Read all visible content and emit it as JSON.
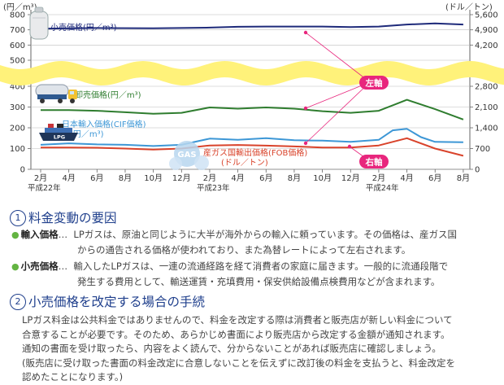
{
  "chart_data": {
    "type": "line",
    "yunit_left": "(円／m³)",
    "yunit_right": "(ドル／トン)",
    "left_ticks": [
      "0",
      "100",
      "200",
      "300",
      "400",
      "500",
      "600",
      "700",
      "800"
    ],
    "right_ticks": [
      "0",
      "700",
      "1,400",
      "2,100",
      "2,800",
      "4,200",
      "4,900",
      "5,600"
    ],
    "x_ticks": [
      {
        "label": "2月",
        "era": "平成22年"
      },
      {
        "label": "4月"
      },
      {
        "label": "6月"
      },
      {
        "label": "8月"
      },
      {
        "label": "10月"
      },
      {
        "label": "12月"
      },
      {
        "label": "2月",
        "era": "平成23年"
      },
      {
        "label": "4月"
      },
      {
        "label": "6月"
      },
      {
        "label": "8月"
      },
      {
        "label": "10月"
      },
      {
        "label": "12月"
      },
      {
        "label": "2月",
        "era": "平成24年"
      },
      {
        "label": "4月"
      },
      {
        "label": "6月"
      },
      {
        "label": "8月"
      }
    ],
    "x_index_unit": "months from 2月 平成22年",
    "series": [
      {
        "name": "小売価格(円／m³)",
        "axis": "left",
        "color": "#1e2a7a",
        "x": [
          0,
          4,
          8,
          12,
          14,
          16,
          18,
          20,
          22,
          24,
          26,
          28,
          30
        ],
        "y": [
          708,
          712,
          710,
          715,
          720,
          722,
          722,
          722,
          718,
          722,
          735,
          742,
          735
        ]
      },
      {
        "name": "卸売価格(円／m³)",
        "axis": "left",
        "color": "#2f7d2f",
        "x": [
          0,
          2,
          4,
          6,
          8,
          10,
          12,
          14,
          16,
          18,
          20,
          22,
          24,
          26,
          28,
          30
        ],
        "y": [
          285,
          285,
          282,
          275,
          268,
          272,
          298,
          292,
          298,
          292,
          280,
          272,
          282,
          335,
          290,
          240
        ]
      },
      {
        "name": "日本輸入価格(CIF価格)(円／m³)",
        "axis": "left",
        "color": "#3d97d6",
        "x": [
          0,
          2,
          4,
          6,
          8,
          10,
          12,
          14,
          16,
          18,
          20,
          22,
          24,
          25,
          26,
          27,
          28,
          30
        ],
        "y": [
          118,
          125,
          120,
          118,
          112,
          118,
          148,
          142,
          150,
          140,
          138,
          132,
          142,
          188,
          195,
          155,
          132,
          130
        ]
      },
      {
        "name": "産ガス国輸出価格(FOB価格)(ドル／トン)",
        "axis": "right",
        "color": "#d9432b",
        "x": [
          0,
          2,
          4,
          6,
          8,
          10,
          12,
          14,
          16,
          18,
          20,
          22,
          24,
          26,
          28,
          30
        ],
        "y": [
          735,
          735,
          728,
          700,
          665,
          700,
          805,
          822,
          798,
          770,
          735,
          735,
          805,
          1050,
          700,
          455
        ]
      }
    ],
    "callouts": {
      "left": "左軸",
      "right": "右軸"
    },
    "icons": [
      "gas-cylinder-icon",
      "tanker-truck-icon",
      "lpg-ship-icon",
      "gas-bubble-icon"
    ],
    "lpg_label": "LPG",
    "gas_label": "GAS"
  },
  "sections": [
    {
      "num": "1",
      "title": "料金変動の要因"
    },
    {
      "num": "2",
      "title": "小売価格を改定する場合の手続"
    }
  ],
  "terms": [
    {
      "label": "輸入価格",
      "sep": "…",
      "lines": [
        "LPガスは、原油と同じように大半が海外からの輸入に頼っています。その価格は、産ガス国",
        "からの通告される価格が使われており、また為替レートによって左右されます。"
      ]
    },
    {
      "label": "小売価格",
      "sep": "…",
      "lines": [
        "輸入したLPガスは、一連の流通経路を経て消費者の家庭に届きます。一般的に流通段階で",
        "発生する費用として、輸送運賃・充填費用・保安供給設備点検費用などが含まれます。"
      ]
    }
  ],
  "procedure": [
    "LPガス料金は公共料金ではありませんので、料金を改定する際は消費者と販売店が新しい料金について",
    "合意することが必要です。そのため、あらかじめ書面により販売店から改定する金額が通知されます。",
    "通知の書面を受け取ったら、内容をよく読んで、分からないことがあれば販売店に確認しましょう。",
    "(販売店に受け取った書面の料金改定に合意しないことを伝えずに改訂後の料金を支払うと、料金改定を",
    "認めたことになります。)"
  ],
  "colors": {
    "heading": "#1f3f8c",
    "bullet": "#63b442",
    "callout": "#e8267d",
    "wave": "#fff27a"
  }
}
